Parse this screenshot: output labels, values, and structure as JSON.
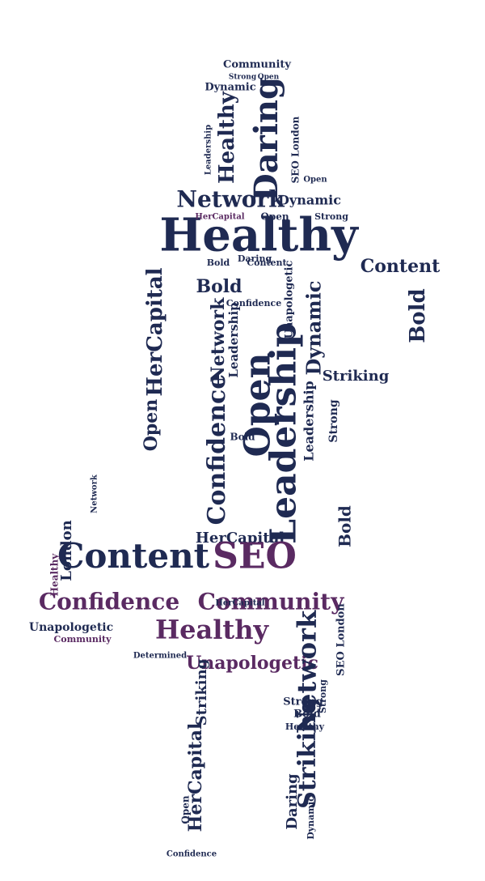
{
  "colors": {
    "navy": "#1f2a52",
    "purple": "#5a2a62",
    "plum": "#7a3a7c"
  },
  "words": [
    {
      "text": "Community",
      "color": "navy"
    },
    {
      "text": "Strong",
      "color": "navy"
    },
    {
      "text": "Open",
      "color": "navy"
    },
    {
      "text": "Dynamic",
      "color": "navy"
    },
    {
      "text": "Healthy",
      "color": "navy"
    },
    {
      "text": "Daring",
      "color": "navy"
    },
    {
      "text": "SEO London",
      "color": "navy"
    },
    {
      "text": "Leadership",
      "color": "navy"
    },
    {
      "text": "Open",
      "color": "navy"
    },
    {
      "text": "Network",
      "color": "navy"
    },
    {
      "text": "Dynamic",
      "color": "navy"
    },
    {
      "text": "Healthy",
      "color": "navy"
    },
    {
      "text": "HerCapital",
      "color": "purple"
    },
    {
      "text": "Open",
      "color": "navy"
    },
    {
      "text": "Strong",
      "color": "navy"
    },
    {
      "text": "Bold",
      "color": "navy"
    },
    {
      "text": "Content",
      "color": "navy"
    },
    {
      "text": "Bold",
      "color": "navy"
    },
    {
      "text": "Confidence",
      "color": "navy"
    },
    {
      "text": "Unapologetic",
      "color": "navy"
    },
    {
      "text": "HerCapital",
      "color": "navy"
    },
    {
      "text": "Network",
      "color": "navy"
    },
    {
      "text": "Leadership",
      "color": "navy"
    },
    {
      "text": "Dynamic",
      "color": "navy"
    },
    {
      "text": "Content",
      "color": "navy"
    },
    {
      "text": "Bold",
      "color": "navy"
    },
    {
      "text": "Open",
      "color": "navy"
    },
    {
      "text": "Leadership",
      "color": "navy"
    },
    {
      "text": "Confidence",
      "color": "navy"
    },
    {
      "text": "Striking",
      "color": "navy"
    },
    {
      "text": "Strong",
      "color": "navy"
    },
    {
      "text": "Open",
      "color": "navy"
    },
    {
      "text": "Leadership",
      "color": "navy"
    },
    {
      "text": "HerCapital",
      "color": "navy"
    },
    {
      "text": "Content",
      "color": "navy"
    },
    {
      "text": "SEO",
      "color": "purple"
    },
    {
      "text": "London",
      "color": "navy"
    },
    {
      "text": "Healthy",
      "color": "purple"
    },
    {
      "text": "Confidence",
      "color": "purple"
    },
    {
      "text": "Community",
      "color": "purple"
    },
    {
      "text": "Unapologetic",
      "color": "navy"
    },
    {
      "text": "Community",
      "color": "purple"
    },
    {
      "text": "Healthy",
      "color": "purple"
    },
    {
      "text": "Determined",
      "color": "navy"
    },
    {
      "text": "Unapologetic",
      "color": "purple"
    },
    {
      "text": "Network",
      "color": "navy"
    },
    {
      "text": "Bold",
      "color": "navy"
    },
    {
      "text": "SEO London",
      "color": "navy"
    },
    {
      "text": "Striking",
      "color": "navy"
    },
    {
      "text": "HerCapital",
      "color": "navy"
    },
    {
      "text": "Striking",
      "color": "navy"
    },
    {
      "text": "Strong",
      "color": "navy"
    },
    {
      "text": "Bold",
      "color": "navy"
    },
    {
      "text": "Healthy",
      "color": "navy"
    },
    {
      "text": "Daring",
      "color": "navy"
    },
    {
      "text": "Dynamic",
      "color": "navy"
    },
    {
      "text": "Strong",
      "color": "navy"
    },
    {
      "text": "Open",
      "color": "navy"
    },
    {
      "text": "Confidence",
      "color": "navy"
    },
    {
      "text": "HerCapital",
      "color": "navy"
    },
    {
      "text": "Network",
      "color": "navy"
    },
    {
      "text": "Daring",
      "color": "navy"
    },
    {
      "text": "Bold",
      "color": "navy"
    }
  ]
}
